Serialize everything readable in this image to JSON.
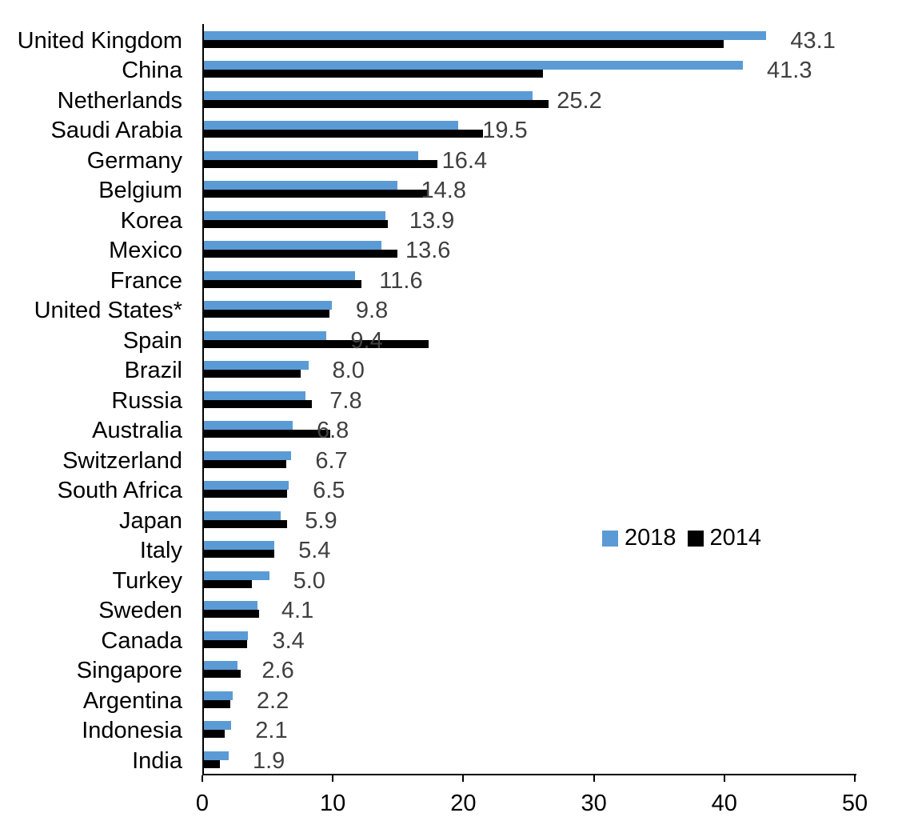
{
  "chart_data": {
    "type": "bar",
    "orientation": "horizontal",
    "title": "",
    "xlabel": "",
    "ylabel": "",
    "xlim": [
      0,
      50
    ],
    "x_ticks": [
      "0",
      "10",
      "20",
      "30",
      "40",
      "50"
    ],
    "x_tick_values": [
      0,
      10,
      20,
      30,
      40,
      50
    ],
    "grid": "off",
    "categories": [
      "United Kingdom",
      "China",
      "Netherlands",
      "Saudi Arabia",
      "Germany",
      "Belgium",
      "Korea",
      "Mexico",
      "France",
      "United States*",
      "Spain",
      "Brazil",
      "Russia",
      "Australia",
      "Switzerland",
      "South Africa",
      "Japan",
      "Italy",
      "Turkey",
      "Sweden",
      "Canada",
      "Singapore",
      "Argentina",
      "Indonesia",
      "India"
    ],
    "series": [
      {
        "name": "2018",
        "color": "#5B9BD5",
        "values": [
          43.1,
          41.3,
          25.2,
          19.5,
          16.4,
          14.8,
          13.9,
          13.6,
          11.6,
          9.8,
          9.4,
          8.0,
          7.8,
          6.8,
          6.7,
          6.5,
          5.9,
          5.4,
          5.0,
          4.1,
          3.4,
          2.6,
          2.2,
          2.1,
          1.9
        ]
      },
      {
        "name": "2014",
        "color": "#000000",
        "values": [
          39.8,
          26.0,
          26.4,
          21.4,
          17.9,
          17.1,
          14.1,
          14.8,
          12.1,
          9.6,
          17.2,
          7.4,
          8.3,
          9.7,
          6.3,
          6.4,
          6.4,
          5.4,
          3.7,
          4.2,
          3.3,
          2.8,
          2.0,
          1.6,
          1.2
        ]
      }
    ],
    "data_labels": [
      "43.1",
      "41.3",
      "25.2",
      "19.5",
      "16.4",
      "14.8",
      "13.9",
      "13.6",
      "11.6",
      "9.8",
      "9.4",
      "8.0",
      "7.8",
      "6.8",
      "6.7",
      "6.5",
      "5.9",
      "5.4",
      "5.0",
      "4.1",
      "3.4",
      "2.6",
      "2.2",
      "2.1",
      "1.9"
    ],
    "data_label_series": "2018",
    "data_label_color": "#404040",
    "axis_color": "#000000",
    "legend": {
      "position": "middle-right",
      "entries": [
        {
          "label": "2018",
          "color": "#5B9BD5"
        },
        {
          "label": "2014",
          "color": "#000000"
        }
      ]
    }
  }
}
